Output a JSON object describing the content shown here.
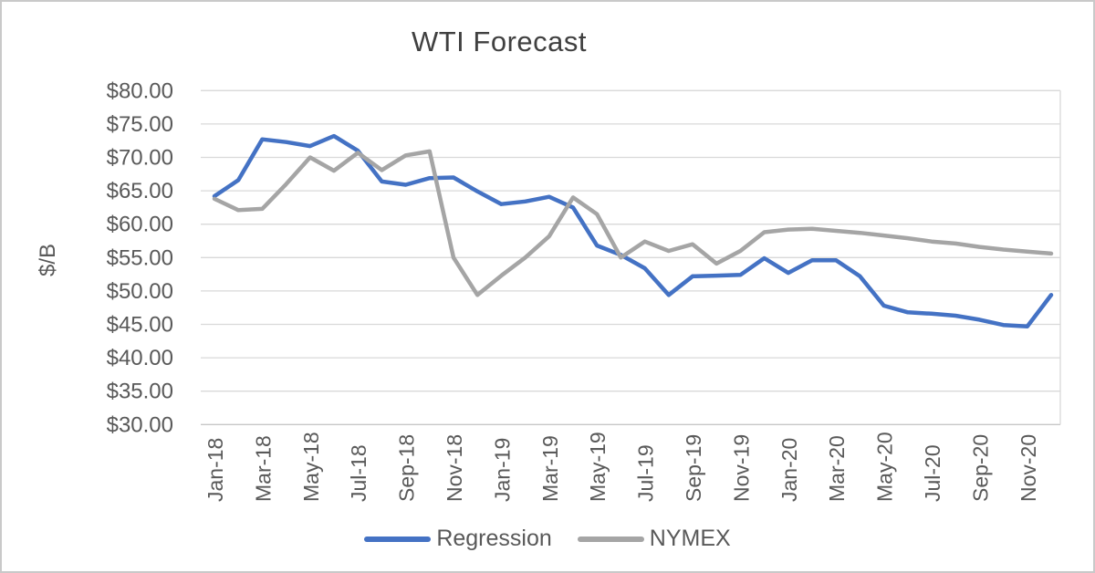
{
  "chart_data": {
    "type": "line",
    "title": "WTI Forecast",
    "ylabel": "$/B",
    "xlabel": "",
    "ylim": [
      30,
      80
    ],
    "y_tick_step": 5,
    "y_tick_labels": [
      "$80.00",
      "$75.00",
      "$70.00",
      "$65.00",
      "$60.00",
      "$55.00",
      "$50.00",
      "$45.00",
      "$40.00",
      "$35.00",
      "$30.00"
    ],
    "grid": "horizontal",
    "legend_position": "bottom",
    "x": [
      "Jan-18",
      "Feb-18",
      "Mar-18",
      "Apr-18",
      "May-18",
      "Jun-18",
      "Jul-18",
      "Aug-18",
      "Sep-18",
      "Oct-18",
      "Nov-18",
      "Dec-18",
      "Jan-19",
      "Feb-19",
      "Mar-19",
      "Apr-19",
      "May-19",
      "Jun-19",
      "Jul-19",
      "Aug-19",
      "Sep-19",
      "Oct-19",
      "Nov-19",
      "Dec-19",
      "Jan-20",
      "Feb-20",
      "Mar-20",
      "Apr-20",
      "May-20",
      "Jun-20",
      "Jul-20",
      "Aug-20",
      "Sep-20",
      "Oct-20",
      "Nov-20",
      "Dec-20"
    ],
    "x_tick_labels_shown": [
      "Jan-18",
      "Mar-18",
      "May-18",
      "Jul-18",
      "Sep-18",
      "Nov-18",
      "Jan-19",
      "Mar-19",
      "May-19",
      "Jul-19",
      "Sep-19",
      "Nov-19",
      "Jan-20",
      "Mar-20",
      "May-20",
      "Jul-20",
      "Sep-20",
      "Nov-20"
    ],
    "series": [
      {
        "name": "Regression",
        "color": "#4472C4",
        "values": [
          64.2,
          66.6,
          72.7,
          72.3,
          71.7,
          73.2,
          71.0,
          66.4,
          65.9,
          66.9,
          67.0,
          64.9,
          63.0,
          63.4,
          64.1,
          62.5,
          56.8,
          55.4,
          53.4,
          49.4,
          52.2,
          52.3,
          52.4,
          54.9,
          52.7,
          54.6,
          54.6,
          52.2,
          47.8,
          46.8,
          46.6,
          46.3,
          45.7,
          44.9,
          44.7,
          49.4
        ]
      },
      {
        "name": "NYMEX",
        "color": "#A5A5A5",
        "values": [
          63.8,
          62.1,
          62.3,
          66.0,
          70.0,
          68.0,
          70.7,
          68.1,
          70.3,
          70.9,
          55.0,
          49.4,
          52.3,
          55.0,
          58.2,
          64.0,
          61.5,
          55.0,
          57.4,
          56.0,
          57.0,
          54.1,
          56.0,
          58.8,
          59.2,
          59.3,
          59.0,
          58.7,
          58.3,
          57.9,
          57.4,
          57.1,
          56.6,
          56.2,
          55.9,
          55.6
        ]
      }
    ]
  },
  "colors": {
    "regression": "#4472C4",
    "nymex": "#A5A5A5",
    "gridline": "#D9D9D9",
    "axis_line": "#C6C6C6",
    "axis_text": "#595959",
    "title_text": "#404040"
  }
}
